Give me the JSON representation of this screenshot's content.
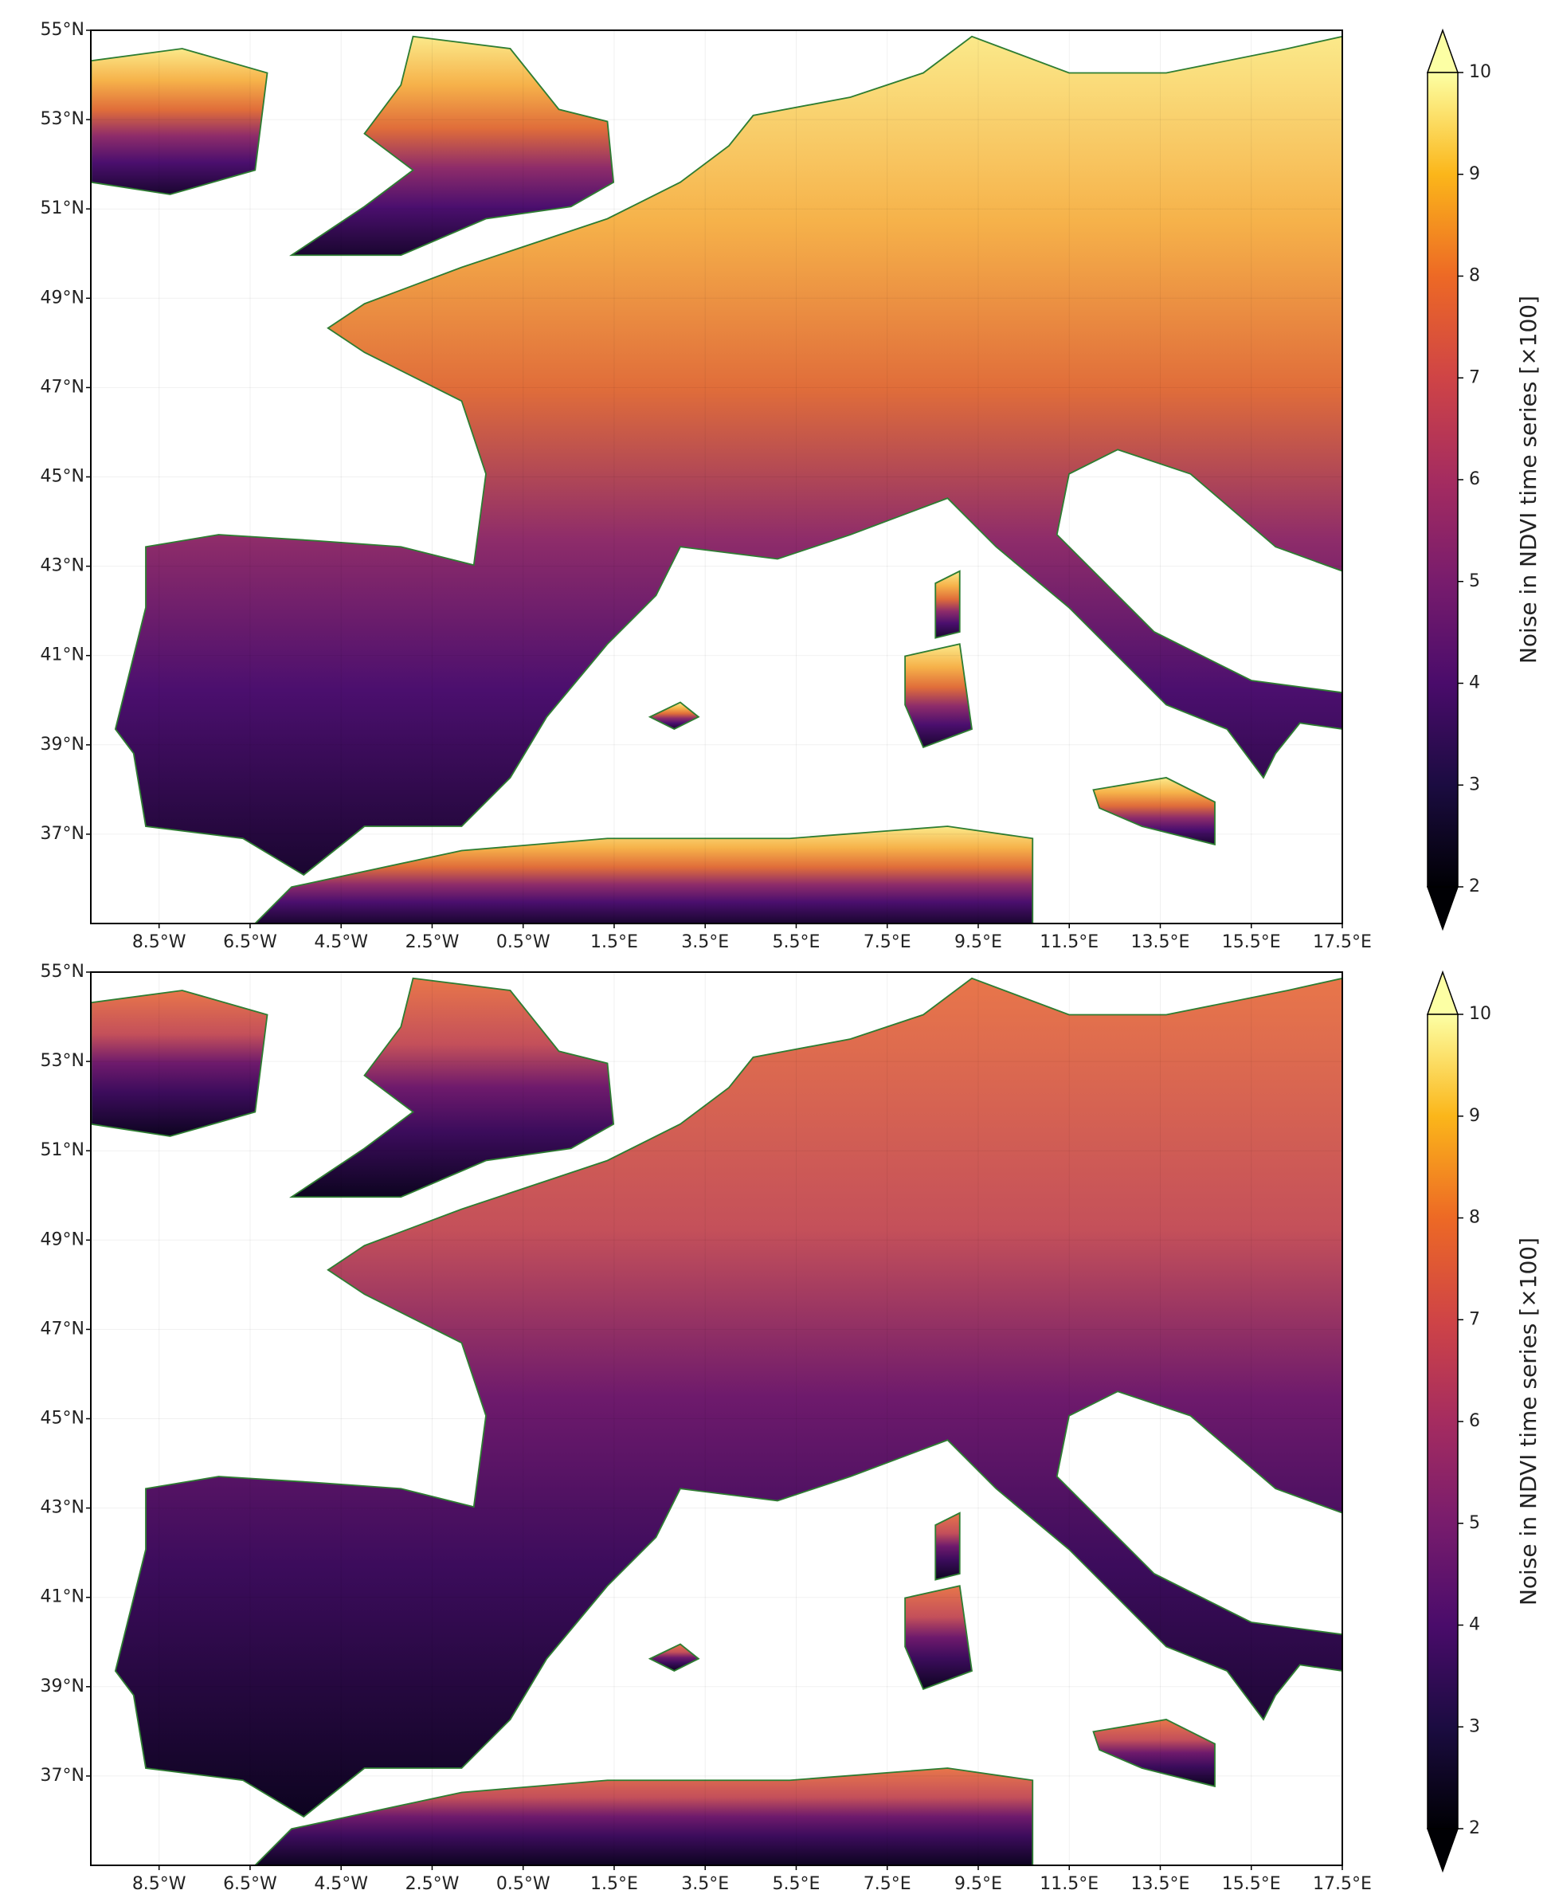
{
  "panels": [
    {
      "xlim": [
        -10,
        17.5
      ],
      "ylim": [
        35,
        55
      ],
      "yticks": [
        {
          "value": 55,
          "label": "55°N"
        },
        {
          "value": 53,
          "label": "53°N"
        },
        {
          "value": 51,
          "label": "51°N"
        },
        {
          "value": 49,
          "label": "49°N"
        },
        {
          "value": 47,
          "label": "47°N"
        },
        {
          "value": 45,
          "label": "45°N"
        },
        {
          "value": 43,
          "label": "43°N"
        },
        {
          "value": 41,
          "label": "41°N"
        },
        {
          "value": 39,
          "label": "39°N"
        },
        {
          "value": 37,
          "label": "37°N"
        }
      ],
      "xticks": [
        {
          "value": -8.5,
          "label": "8.5°W"
        },
        {
          "value": -6.5,
          "label": "6.5°W"
        },
        {
          "value": -4.5,
          "label": "4.5°W"
        },
        {
          "value": -2.5,
          "label": "2.5°W"
        },
        {
          "value": -0.5,
          "label": "0.5°W"
        },
        {
          "value": 1.5,
          "label": "1.5°E"
        },
        {
          "value": 3.5,
          "label": "3.5°E"
        },
        {
          "value": 5.5,
          "label": "5.5°E"
        },
        {
          "value": 7.5,
          "label": "7.5°E"
        },
        {
          "value": 9.5,
          "label": "9.5°E"
        },
        {
          "value": 11.5,
          "label": "11.5°E"
        },
        {
          "value": 13.5,
          "label": "13.5°E"
        },
        {
          "value": 15.5,
          "label": "15.5°E"
        },
        {
          "value": 17.5,
          "label": "17.5°E"
        }
      ],
      "colorbar": {
        "label": "Noise in NDVI time series [×100]",
        "lim": [
          2,
          10
        ],
        "ticks": [
          2,
          3,
          4,
          5,
          6,
          7,
          8,
          9,
          10
        ]
      }
    },
    {
      "xlim": [
        -10,
        17.5
      ],
      "ylim": [
        35,
        55
      ],
      "yticks": [
        {
          "value": 55,
          "label": "55°N"
        },
        {
          "value": 53,
          "label": "53°N"
        },
        {
          "value": 51,
          "label": "51°N"
        },
        {
          "value": 49,
          "label": "49°N"
        },
        {
          "value": 47,
          "label": "47°N"
        },
        {
          "value": 45,
          "label": "45°N"
        },
        {
          "value": 43,
          "label": "43°N"
        },
        {
          "value": 41,
          "label": "41°N"
        },
        {
          "value": 39,
          "label": "39°N"
        },
        {
          "value": 37,
          "label": "37°N"
        }
      ],
      "xticks": [
        {
          "value": -8.5,
          "label": "8.5°W"
        },
        {
          "value": -6.5,
          "label": "6.5°W"
        },
        {
          "value": -4.5,
          "label": "4.5°W"
        },
        {
          "value": -2.5,
          "label": "2.5°W"
        },
        {
          "value": -0.5,
          "label": "0.5°W"
        },
        {
          "value": 1.5,
          "label": "1.5°E"
        },
        {
          "value": 3.5,
          "label": "3.5°E"
        },
        {
          "value": 5.5,
          "label": "5.5°E"
        },
        {
          "value": 7.5,
          "label": "7.5°E"
        },
        {
          "value": 9.5,
          "label": "9.5°E"
        },
        {
          "value": 11.5,
          "label": "11.5°E"
        },
        {
          "value": 13.5,
          "label": "13.5°E"
        },
        {
          "value": 15.5,
          "label": "15.5°E"
        },
        {
          "value": 17.5,
          "label": "17.5°E"
        }
      ],
      "colorbar": {
        "label": "Noise in NDVI time series [×100]",
        "lim": [
          2,
          10
        ],
        "ticks": [
          2,
          3,
          4,
          5,
          6,
          7,
          8,
          9,
          10
        ]
      }
    }
  ]
}
